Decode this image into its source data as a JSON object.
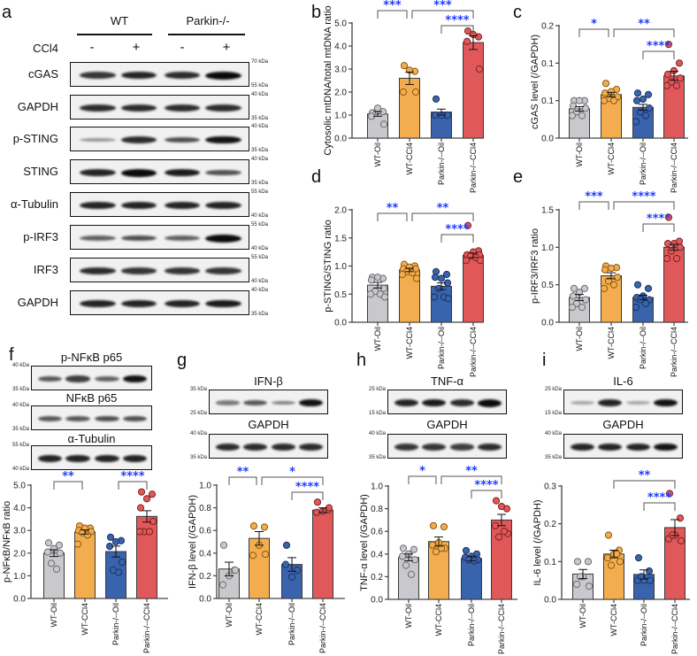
{
  "colors": {
    "groups": [
      "#c9c9cd",
      "#f4ad4e",
      "#3a63ad",
      "#e0585a"
    ],
    "point_strokes": [
      "#6e6e72",
      "#8a5a12",
      "#1c335f",
      "#7e2222"
    ],
    "significance": "#1f3cff"
  },
  "panel_letters": [
    "a",
    "b",
    "c",
    "d",
    "e",
    "f",
    "g",
    "h",
    "i"
  ],
  "blots": {
    "a": {
      "groups": [
        "WT",
        "Parkin-/-"
      ],
      "treatment_label": "CCl4",
      "treatment_signs": [
        "-",
        "+",
        "-",
        "+"
      ],
      "rows": [
        {
          "label": "cGAS",
          "kda_top": "70 kDa",
          "kda_bottom": "55 kDa",
          "intensity": [
            0.75,
            0.85,
            0.8,
            1.0
          ]
        },
        {
          "label": "GAPDH",
          "kda_top": "40 kDa",
          "kda_bottom": "35 kDa",
          "intensity": [
            0.8,
            0.8,
            0.8,
            0.8
          ]
        },
        {
          "label": "p-STING",
          "kda_top": "40 kDa",
          "kda_bottom": "35 kDa",
          "intensity": [
            0.2,
            0.8,
            0.6,
            0.95
          ]
        },
        {
          "label": "STING",
          "kda_top": "40 kDa",
          "kda_bottom": "35 kDa",
          "intensity": [
            0.85,
            1.0,
            0.9,
            0.6
          ]
        },
        {
          "label": "α-Tubulin",
          "kda_top": "55 kDa",
          "kda_bottom": "40 kDa",
          "intensity": [
            0.85,
            0.85,
            0.85,
            0.85
          ]
        },
        {
          "label": "p-IRF3",
          "kda_top": "55 kDa",
          "kda_bottom": "40 kDa",
          "intensity": [
            0.5,
            0.6,
            0.5,
            1.0
          ]
        },
        {
          "label": "IRF3",
          "kda_top": "55 kDa",
          "kda_bottom": "40 kDa",
          "intensity": [
            0.8,
            0.75,
            0.75,
            0.75
          ]
        },
        {
          "label": "GAPDH",
          "kda_top": "40 kDa",
          "kda_bottom": "35 kDa",
          "intensity": [
            0.85,
            0.85,
            0.85,
            0.9
          ]
        }
      ]
    },
    "f": {
      "rows": [
        {
          "label": "p-NFκB p65",
          "kda_top": "40 kDa",
          "kda_bottom": "35 kDa",
          "intensity": [
            0.55,
            0.7,
            0.5,
            0.95
          ]
        },
        {
          "label": "NFκB p65",
          "kda_top": "40 kDa",
          "kda_bottom": "35 kDa",
          "intensity": [
            0.55,
            0.55,
            0.6,
            0.6
          ]
        },
        {
          "label": "α-Tubulin",
          "kda_top": "55 kDa",
          "kda_bottom": "40 kDa",
          "intensity": [
            0.85,
            0.85,
            0.85,
            0.85
          ]
        }
      ]
    },
    "g": {
      "rows": [
        {
          "label": "IFN-β",
          "kda_top": "35 kDa",
          "kda_bottom": "25 kDa",
          "intensity": [
            0.35,
            0.55,
            0.3,
            0.95
          ]
        },
        {
          "label": "GAPDH",
          "kda_top": "40 kDa",
          "kda_bottom": "35 kDa",
          "intensity": [
            0.8,
            0.8,
            0.8,
            0.8
          ]
        }
      ]
    },
    "h": {
      "rows": [
        {
          "label": "TNF-α",
          "kda_top": "25 kDa",
          "kda_bottom": "15 kDa",
          "intensity": [
            0.85,
            0.9,
            0.8,
            1.0
          ]
        },
        {
          "label": "GAPDH",
          "kda_top": "40 kDa",
          "kda_bottom": "35 kDa",
          "intensity": [
            0.75,
            0.75,
            0.7,
            0.8
          ]
        }
      ]
    },
    "i": {
      "rows": [
        {
          "label": "IL-6",
          "kda_top": "25 kDa",
          "kda_bottom": "15 kDa",
          "intensity": [
            0.1,
            0.85,
            0.1,
            0.95
          ]
        },
        {
          "label": "GAPDH",
          "kda_top": "40 kDa",
          "kda_bottom": "35 kDa",
          "intensity": [
            0.85,
            0.85,
            0.85,
            0.95
          ]
        }
      ]
    }
  },
  "chart_data": [
    {
      "id": "b",
      "type": "bar",
      "ylabel": "Cytosolic mtDNA/total mtDNA ratio",
      "categories": [
        "WT-Oil",
        "WT-CCl4",
        "Parkin-/--Oil",
        "Parkin-/--CCl4"
      ],
      "ylim": [
        0,
        5
      ],
      "yticks": [
        0,
        1,
        2,
        3,
        4,
        5
      ],
      "ytick_labels": [
        "0.0",
        "1.0",
        "2.0",
        "3.0",
        "4.0",
        "5.0"
      ],
      "values": [
        1.05,
        2.6,
        1.13,
        4.15
      ],
      "sem": [
        0.1,
        0.27,
        0.13,
        0.3
      ],
      "points": [
        [
          1.1,
          1.15,
          1.3,
          0.95,
          0.6
        ],
        [
          3.15,
          2.9,
          2.95,
          2.0,
          2.0
        ],
        [
          1.7,
          1.0,
          1.0,
          1.0,
          1.0
        ],
        [
          4.65,
          4.4,
          4.5,
          4.2,
          3.0
        ]
      ],
      "significance": [
        {
          "from": 0,
          "to": 1,
          "label": "***",
          "row": 0
        },
        {
          "from": 1,
          "to": 3,
          "label": "***",
          "row": 0
        },
        {
          "from": 2,
          "to": 3,
          "label": "****",
          "row": 1
        }
      ]
    },
    {
      "id": "c",
      "type": "bar",
      "ylabel": "cGAS level (/GAPDH)",
      "categories": [
        "WT-Oil",
        "WT-CCl4",
        "Parkin-/--Oil",
        "Parkin-/--CCl4"
      ],
      "ylim": [
        0,
        0.15
      ],
      "yticks": [
        0,
        0.05,
        0.1,
        0.15
      ],
      "ytick_labels": [
        "0.0",
        "0.1",
        "0.1",
        "0.2"
      ],
      "values": [
        0.039,
        0.058,
        0.041,
        0.083
      ],
      "sem": [
        0.003,
        0.003,
        0.004,
        0.006
      ],
      "points": [
        [
          0.05,
          0.05,
          0.05,
          0.043,
          0.04,
          0.035,
          0.03,
          0.03
        ],
        [
          0.073,
          0.065,
          0.062,
          0.06,
          0.055,
          0.053,
          0.05,
          0.05
        ],
        [
          0.06,
          0.058,
          0.052,
          0.05,
          0.04,
          0.035,
          0.03,
          0.022
        ],
        [
          0.125,
          0.1,
          0.09,
          0.085,
          0.08,
          0.075,
          0.07,
          0.07
        ]
      ],
      "significance": [
        {
          "from": 0,
          "to": 1,
          "label": "*",
          "row": 0
        },
        {
          "from": 1,
          "to": 3,
          "label": "**",
          "row": 0
        },
        {
          "from": 2,
          "to": 3,
          "label": "****",
          "row": 1
        }
      ]
    },
    {
      "id": "d",
      "type": "bar",
      "ylabel": "p-STING/STING ratio",
      "categories": [
        "WT-Oil",
        "WT-CCl4",
        "Parkin-/--Oil",
        "Parkin-/--CCl4"
      ],
      "ylim": [
        0,
        2
      ],
      "yticks": [
        0,
        0.5,
        1,
        1.5,
        2
      ],
      "ytick_labels": [
        "0.0",
        "0.5",
        "1.0",
        "1.5",
        "2.0"
      ],
      "values": [
        0.66,
        0.93,
        0.64,
        1.19
      ],
      "sem": [
        0.05,
        0.03,
        0.06,
        0.04
      ],
      "points": [
        [
          0.8,
          0.78,
          0.8,
          0.75,
          0.6,
          0.55,
          0.5,
          0.5,
          0.45
        ],
        [
          1.03,
          1.0,
          0.98,
          0.95,
          0.95,
          0.9,
          0.88,
          0.85,
          0.78
        ],
        [
          0.9,
          0.85,
          0.78,
          0.8,
          0.7,
          0.6,
          0.45,
          0.45,
          0.42
        ],
        [
          1.72,
          1.27,
          1.25,
          1.2,
          1.2,
          1.18,
          1.15,
          1.1,
          1.1
        ]
      ],
      "significance": [
        {
          "from": 0,
          "to": 1,
          "label": "**",
          "row": 0
        },
        {
          "from": 1,
          "to": 3,
          "label": "**",
          "row": 0
        },
        {
          "from": 2,
          "to": 3,
          "label": "****",
          "row": 1
        }
      ]
    },
    {
      "id": "e",
      "type": "bar",
      "ylabel": "p-IRF3/IRF3 ratio",
      "categories": [
        "WT-Oil",
        "WT-CCl4",
        "Parkin-/--Oil",
        "Parkin-/--CCl4"
      ],
      "ylim": [
        0,
        1.5
      ],
      "yticks": [
        0,
        0.5,
        1,
        1.5
      ],
      "ytick_labels": [
        "0.0",
        "0.5",
        "1.0",
        "1.5"
      ],
      "values": [
        0.33,
        0.62,
        0.33,
        1.0
      ],
      "sem": [
        0.04,
        0.04,
        0.03,
        0.04
      ],
      "points": [
        [
          0.45,
          0.45,
          0.4,
          0.35,
          0.3,
          0.25,
          0.2,
          0.2
        ],
        [
          0.75,
          0.73,
          0.72,
          0.7,
          0.6,
          0.55,
          0.5,
          0.45
        ],
        [
          0.5,
          0.45,
          0.35,
          0.33,
          0.3,
          0.3,
          0.25,
          0.2
        ],
        [
          1.4,
          1.08,
          1.05,
          1.05,
          1.0,
          0.95,
          0.85,
          0.85
        ]
      ],
      "significance": [
        {
          "from": 0,
          "to": 1,
          "label": "***",
          "row": 0
        },
        {
          "from": 1,
          "to": 3,
          "label": "****",
          "row": 0
        },
        {
          "from": 2,
          "to": 3,
          "label": "****",
          "row": 1
        }
      ]
    },
    {
      "id": "f",
      "type": "bar",
      "ylabel": "p-NFκB/NFκB ratio",
      "categories": [
        "WT-Oil",
        "WT-CCl4",
        "Parkin-/--Oil",
        "Parkin-/--CCl4"
      ],
      "ylim": [
        0,
        5
      ],
      "yticks": [
        0,
        1,
        2,
        3,
        4,
        5
      ],
      "ytick_labels": [
        "0.0",
        "1.0",
        "2.0",
        "3.0",
        "4.0",
        "5.0"
      ],
      "values": [
        2.0,
        2.93,
        2.07,
        3.62
      ],
      "sem": [
        0.15,
        0.09,
        0.24,
        0.25
      ],
      "points": [
        [
          2.45,
          2.35,
          2.2,
          2.05,
          2.0,
          1.55,
          1.3
        ],
        [
          3.2,
          3.1,
          3.1,
          3.0,
          2.95,
          2.9,
          2.8,
          2.4
        ],
        [
          2.7,
          2.55,
          2.5,
          2.3,
          1.6,
          1.25,
          1.15
        ],
        [
          4.7,
          4.6,
          4.4,
          4.0,
          3.4,
          2.95,
          2.95,
          2.95
        ]
      ],
      "significance": [
        {
          "from": 0,
          "to": 1,
          "label": "**",
          "row": 0
        },
        {
          "from": 2,
          "to": 3,
          "label": "****",
          "row": 0
        }
      ]
    },
    {
      "id": "g",
      "type": "bar",
      "ylabel": "IFN-β level (/GAPDH)",
      "categories": [
        "WT-Oil",
        "WT-CCl4",
        "Parkin-/--Oil",
        "Parkin-/--CCl4"
      ],
      "ylim": [
        0,
        1
      ],
      "yticks": [
        0,
        0.2,
        0.4,
        0.6,
        0.8,
        1.0
      ],
      "ytick_labels": [
        "0.0",
        "0.2",
        "0.4",
        "0.6",
        "0.8",
        "1.0"
      ],
      "values": [
        0.26,
        0.53,
        0.3,
        0.78
      ],
      "sem": [
        0.06,
        0.06,
        0.06,
        0.02
      ],
      "points": [
        [
          0.47,
          0.25,
          0.2,
          0.12,
          0.25
        ],
        [
          0.64,
          0.63,
          0.47,
          0.38,
          0.39
        ],
        [
          0.47,
          0.25,
          0.19,
          0.3
        ],
        [
          0.85,
          0.78,
          0.77,
          0.76,
          0.8
        ]
      ],
      "significance": [
        {
          "from": 0,
          "to": 1,
          "label": "**",
          "row": 0
        },
        {
          "from": 1,
          "to": 3,
          "label": "*",
          "row": 0
        },
        {
          "from": 2,
          "to": 3,
          "label": "****",
          "row": 1
        }
      ]
    },
    {
      "id": "h",
      "type": "bar",
      "ylabel": "TNF-α level (/GAPDH)",
      "categories": [
        "WT-Oil",
        "WT-CCl4",
        "Parkin-/--Oil",
        "Parkin-/--CCl4"
      ],
      "ylim": [
        0,
        1
      ],
      "yticks": [
        0,
        0.2,
        0.4,
        0.6,
        0.8,
        1.0
      ],
      "ytick_labels": [
        "0.0",
        "0.2",
        "0.4",
        "0.6",
        "0.8",
        "1.0"
      ],
      "values": [
        0.37,
        0.51,
        0.36,
        0.7
      ],
      "sem": [
        0.03,
        0.04,
        0.02,
        0.05
      ],
      "points": [
        [
          0.45,
          0.44,
          0.4,
          0.38,
          0.35,
          0.3,
          0.22
        ],
        [
          0.65,
          0.64,
          0.5,
          0.48,
          0.45,
          0.42,
          0.45
        ],
        [
          0.43,
          0.4,
          0.38,
          0.37,
          0.35,
          0.35,
          0.34
        ],
        [
          0.87,
          0.8,
          0.82,
          0.65,
          0.58,
          0.55,
          0.6
        ]
      ],
      "significance": [
        {
          "from": 0,
          "to": 1,
          "label": "*",
          "row": 0
        },
        {
          "from": 1,
          "to": 3,
          "label": "**",
          "row": 0
        },
        {
          "from": 2,
          "to": 3,
          "label": "****",
          "row": 1
        }
      ]
    },
    {
      "id": "i",
      "type": "bar",
      "ylabel": "IL-6 level (/GAPDH)",
      "categories": [
        "WT-Oil",
        "WT-CCl4",
        "Parkin-/--Oil",
        "Parkin-/--CCl4"
      ],
      "ylim": [
        0,
        0.3
      ],
      "yticks": [
        0,
        0.1,
        0.2,
        0.3
      ],
      "ytick_labels": [
        "0.0",
        "0.1",
        "0.2",
        "0.3"
      ],
      "values": [
        0.067,
        0.12,
        0.066,
        0.19
      ],
      "sem": [
        0.012,
        0.01,
        0.012,
        0.021
      ],
      "points": [
        [
          0.1,
          0.1,
          0.06,
          0.04,
          0.035,
          0.06
        ],
        [
          0.17,
          0.13,
          0.12,
          0.11,
          0.1,
          0.09,
          0.12
        ],
        [
          0.11,
          0.075,
          0.05,
          0.05,
          0.05,
          0.06
        ],
        [
          0.28,
          0.215,
          0.17,
          0.16,
          0.155,
          0.17
        ]
      ],
      "significance": [
        {
          "from": 1,
          "to": 3,
          "label": "**",
          "row": 0
        },
        {
          "from": 2,
          "to": 3,
          "label": "****",
          "row": 1
        }
      ]
    }
  ]
}
